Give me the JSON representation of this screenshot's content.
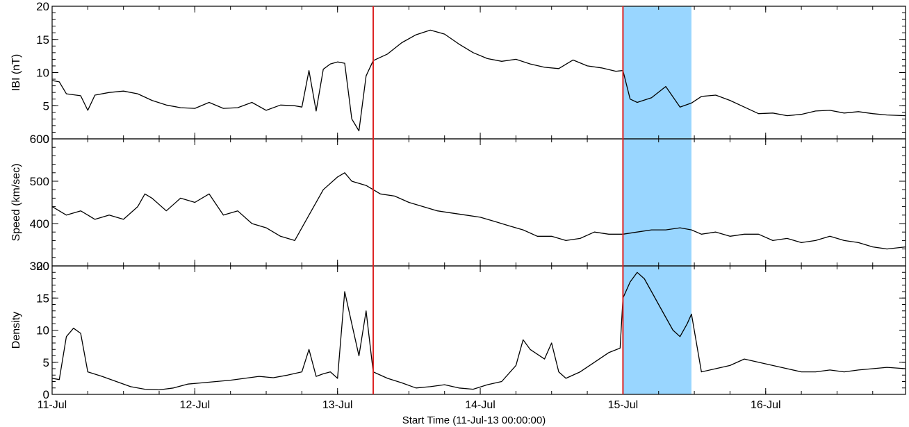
{
  "chart_data": {
    "type": "line",
    "xlabel": "Start Time (11-Jul-13 00:00:00)",
    "x_range_days": [
      0,
      5.98
    ],
    "x_ticks": [
      {
        "day": 0,
        "label": "11-Jul"
      },
      {
        "day": 1,
        "label": "12-Jul"
      },
      {
        "day": 2,
        "label": "13-Jul"
      },
      {
        "day": 3,
        "label": "14-Jul"
      },
      {
        "day": 4,
        "label": "15-Jul"
      },
      {
        "day": 5,
        "label": "16-Jul"
      }
    ],
    "vertical_lines": [
      {
        "day": 2.25,
        "color": "#dd2222"
      },
      {
        "day": 4.0,
        "color": "#dd2222"
      }
    ],
    "shaded_region": {
      "start_day": 4.0,
      "end_day": 4.48,
      "color": "#99d6ff"
    },
    "panels": [
      {
        "ylabel": "IBI (nT)",
        "ylim": [
          0,
          20
        ],
        "yticks": [
          0,
          5,
          10,
          15,
          20
        ],
        "series": [
          {
            "x": [
              0,
              0.05,
              0.1,
              0.2,
              0.25,
              0.3,
              0.4,
              0.5,
              0.6,
              0.7,
              0.8,
              0.9,
              1.0,
              1.1,
              1.2,
              1.3,
              1.4,
              1.5,
              1.6,
              1.7,
              1.75,
              1.8,
              1.85,
              1.9,
              1.95,
              2.0,
              2.05,
              2.1,
              2.15,
              2.2,
              2.25,
              2.35,
              2.45,
              2.55,
              2.65,
              2.75,
              2.85,
              2.95,
              3.05,
              3.15,
              3.25,
              3.35,
              3.45,
              3.55,
              3.65,
              3.75,
              3.85,
              3.95,
              4.0,
              4.05,
              4.1,
              4.2,
              4.3,
              4.4,
              4.48,
              4.55,
              4.65,
              4.75,
              4.85,
              4.95,
              5.05,
              5.15,
              5.25,
              5.35,
              5.45,
              5.55,
              5.65,
              5.75,
              5.85,
              5.98
            ],
            "y": [
              8.8,
              8.6,
              6.8,
              6.5,
              4.3,
              6.6,
              7.0,
              7.2,
              6.8,
              5.8,
              5.1,
              4.7,
              4.6,
              5.5,
              4.6,
              4.7,
              5.5,
              4.3,
              5.1,
              5.0,
              4.8,
              10.3,
              4.2,
              10.5,
              11.3,
              11.6,
              11.4,
              3.0,
              1.2,
              9.5,
              11.8,
              12.8,
              14.5,
              15.7,
              16.4,
              15.8,
              14.3,
              13.0,
              12.1,
              11.7,
              12.0,
              11.3,
              10.8,
              10.6,
              11.9,
              11.0,
              10.7,
              10.2,
              10.3,
              6.0,
              5.5,
              6.2,
              7.9,
              4.8,
              5.4,
              6.4,
              6.6,
              5.8,
              4.8,
              3.8,
              3.9,
              3.5,
              3.7,
              4.2,
              4.3,
              3.9,
              4.1,
              3.8,
              3.6,
              3.5
            ]
          }
        ]
      },
      {
        "ylabel": "Speed (km/sec)",
        "ylim": [
          300,
          600
        ],
        "yticks": [
          300,
          400,
          500,
          600
        ],
        "series": [
          {
            "x": [
              0,
              0.1,
              0.2,
              0.3,
              0.4,
              0.5,
              0.6,
              0.65,
              0.7,
              0.8,
              0.9,
              1.0,
              1.1,
              1.2,
              1.3,
              1.4,
              1.5,
              1.6,
              1.7,
              1.8,
              1.9,
              2.0,
              2.05,
              2.1,
              2.2,
              2.3,
              2.4,
              2.5,
              2.6,
              2.7,
              2.8,
              2.9,
              3.0,
              3.1,
              3.2,
              3.3,
              3.4,
              3.5,
              3.6,
              3.7,
              3.8,
              3.9,
              4.0,
              4.1,
              4.2,
              4.3,
              4.4,
              4.48,
              4.55,
              4.65,
              4.75,
              4.85,
              4.95,
              5.05,
              5.15,
              5.25,
              5.35,
              5.45,
              5.55,
              5.65,
              5.75,
              5.85,
              5.98
            ],
            "y": [
              440,
              420,
              430,
              410,
              420,
              410,
              440,
              470,
              460,
              430,
              460,
              450,
              470,
              420,
              430,
              400,
              390,
              370,
              360,
              420,
              480,
              510,
              520,
              500,
              490,
              470,
              465,
              450,
              440,
              430,
              425,
              420,
              415,
              405,
              395,
              385,
              370,
              370,
              360,
              365,
              380,
              375,
              375,
              380,
              385,
              385,
              390,
              385,
              375,
              380,
              370,
              375,
              375,
              360,
              365,
              355,
              360,
              370,
              360,
              355,
              345,
              340,
              345
            ]
          }
        ]
      },
      {
        "ylabel": "Density",
        "ylim": [
          0,
          20
        ],
        "yticks": [
          0,
          5,
          10,
          15,
          20
        ],
        "series": [
          {
            "x": [
              0,
              0.05,
              0.1,
              0.15,
              0.2,
              0.25,
              0.35,
              0.45,
              0.55,
              0.65,
              0.75,
              0.85,
              0.95,
              1.05,
              1.15,
              1.25,
              1.35,
              1.45,
              1.55,
              1.65,
              1.75,
              1.8,
              1.85,
              1.9,
              1.95,
              2.0,
              2.05,
              2.1,
              2.15,
              2.2,
              2.25,
              2.35,
              2.45,
              2.55,
              2.65,
              2.75,
              2.85,
              2.95,
              3.05,
              3.15,
              3.25,
              3.3,
              3.35,
              3.45,
              3.5,
              3.55,
              3.6,
              3.7,
              3.8,
              3.9,
              3.98,
              4.0,
              4.05,
              4.1,
              4.15,
              4.2,
              4.25,
              4.3,
              4.35,
              4.4,
              4.45,
              4.48,
              4.55,
              4.65,
              4.75,
              4.85,
              4.95,
              5.05,
              5.15,
              5.25,
              5.35,
              5.45,
              5.55,
              5.65,
              5.75,
              5.85,
              5.98
            ],
            "y": [
              2.5,
              2.3,
              9.0,
              10.3,
              9.5,
              3.5,
              2.8,
              2.0,
              1.2,
              0.8,
              0.7,
              1.0,
              1.6,
              1.8,
              2.0,
              2.2,
              2.5,
              2.8,
              2.6,
              3.0,
              3.5,
              7.0,
              2.8,
              3.2,
              3.5,
              2.5,
              16.0,
              11.0,
              6.0,
              13.0,
              3.5,
              2.5,
              1.8,
              1.0,
              1.2,
              1.5,
              1.0,
              0.8,
              1.5,
              2.0,
              4.5,
              8.5,
              7.0,
              5.5,
              8.0,
              3.5,
              2.5,
              3.5,
              5.0,
              6.5,
              7.2,
              15.0,
              17.5,
              19.0,
              18.0,
              16.0,
              14.0,
              12.0,
              10.0,
              9.0,
              11.0,
              12.5,
              3.5,
              4.0,
              4.5,
              5.5,
              5.0,
              4.5,
              4.0,
              3.5,
              3.5,
              3.8,
              3.5,
              3.8,
              4.0,
              4.2,
              4.0
            ]
          }
        ]
      }
    ]
  }
}
